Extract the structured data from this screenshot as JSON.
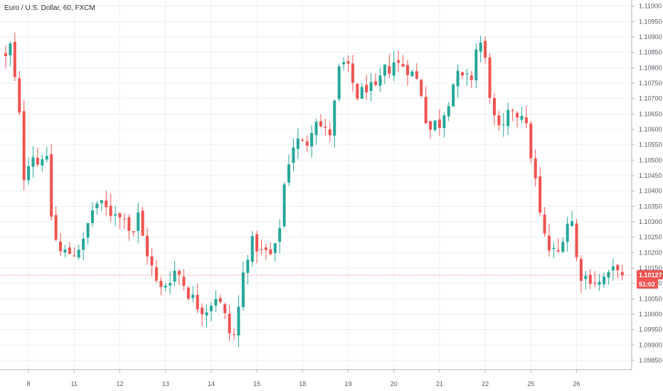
{
  "chart_data": {
    "type": "candlestick",
    "title": "Euro / U.S. Dollar, 60, FXCM",
    "price_axis": {
      "ylim": [
        1.0982,
        1.1102
      ],
      "ticks": [
        "1.11000",
        "1.10950",
        "1.10900",
        "1.10850",
        "1.10800",
        "1.10750",
        "1.10700",
        "1.10650",
        "1.10600",
        "1.10550",
        "1.10500",
        "1.10450",
        "1.10400",
        "1.10350",
        "1.10300",
        "1.10250",
        "1.10200",
        "1.10150",
        "1.10100",
        "1.10050",
        "1.10000",
        "1.09950",
        "1.09900",
        "1.09850"
      ]
    },
    "time_axis": {
      "ticks": [
        {
          "label": "8",
          "bar": 5
        },
        {
          "label": "11",
          "bar": 15
        },
        {
          "label": "12",
          "bar": 25
        },
        {
          "label": "13",
          "bar": 35
        },
        {
          "label": "14",
          "bar": 45
        },
        {
          "label": "15",
          "bar": 55
        },
        {
          "label": "18",
          "bar": 65
        },
        {
          "label": "19",
          "bar": 75
        },
        {
          "label": "20",
          "bar": 85
        },
        {
          "label": "21",
          "bar": 95
        },
        {
          "label": "22",
          "bar": 105
        },
        {
          "label": "25",
          "bar": 115
        },
        {
          "label": "26",
          "bar": 125
        }
      ]
    },
    "anchors": [
      [
        0,
        1.1083
      ],
      [
        1,
        1.1087
      ],
      [
        2,
        1.1076
      ],
      [
        3,
        1.1064
      ],
      [
        4,
        1.1045
      ],
      [
        5,
        1.105
      ],
      [
        6,
        1.1052
      ],
      [
        7,
        1.1049
      ],
      [
        8,
        1.1052
      ],
      [
        9,
        1.1049
      ],
      [
        10,
        1.1032
      ],
      [
        11,
        1.1024
      ],
      [
        12,
        1.102
      ],
      [
        13,
        1.102
      ],
      [
        14,
        1.102
      ],
      [
        15,
        1.102
      ],
      [
        16,
        1.1022
      ],
      [
        17,
        1.1023
      ],
      [
        18,
        1.1029
      ],
      [
        19,
        1.1034
      ],
      [
        20,
        1.1036
      ],
      [
        21,
        1.1035
      ],
      [
        22,
        1.1034
      ],
      [
        23,
        1.1033
      ],
      [
        24,
        1.1034
      ],
      [
        25,
        1.1031
      ],
      [
        26,
        1.1033
      ],
      [
        27,
        1.1028
      ],
      [
        28,
        1.1027
      ],
      [
        29,
        1.1032
      ],
      [
        30,
        1.1025
      ],
      [
        31,
        1.102
      ],
      [
        32,
        1.1015
      ],
      [
        33,
        1.101
      ],
      [
        34,
        1.1008
      ],
      [
        35,
        1.101
      ],
      [
        36,
        1.1012
      ],
      [
        37,
        1.1014
      ],
      [
        38,
        1.1013
      ],
      [
        39,
        1.101
      ],
      [
        40,
        1.1007
      ],
      [
        41,
        1.1005
      ],
      [
        42,
        1.1003
      ],
      [
        43,
        1.1002
      ],
      [
        44,
        1.1002
      ],
      [
        45,
        1.1004
      ],
      [
        46,
        1.1006
      ],
      [
        47,
        1.1003
      ],
      [
        48,
        1.0999
      ],
      [
        49,
        1.0994
      ],
      [
        50,
        1.0993
      ],
      [
        51,
        1.1002
      ],
      [
        52,
        1.1013
      ],
      [
        53,
        1.102
      ],
      [
        54,
        1.1023
      ],
      [
        55,
        1.1022
      ],
      [
        56,
        1.102
      ],
      [
        57,
        1.102
      ],
      [
        58,
        1.1019
      ],
      [
        59,
        1.1021
      ],
      [
        60,
        1.1029
      ],
      [
        61,
        1.1042
      ],
      [
        62,
        1.105
      ],
      [
        63,
        1.1055
      ],
      [
        64,
        1.1056
      ],
      [
        65,
        1.1055
      ],
      [
        66,
        1.1056
      ],
      [
        67,
        1.1061
      ],
      [
        68,
        1.1064
      ],
      [
        69,
        1.1061
      ],
      [
        70,
        1.1059
      ],
      [
        71,
        1.1059
      ],
      [
        72,
        1.1068
      ],
      [
        73,
        1.1079
      ],
      [
        74,
        1.1081
      ],
      [
        75,
        1.1079
      ],
      [
        76,
        1.1075
      ],
      [
        77,
        1.1071
      ],
      [
        78,
        1.1072
      ],
      [
        79,
        1.1074
      ],
      [
        80,
        1.1073
      ],
      [
        81,
        1.1072
      ],
      [
        82,
        1.1076
      ],
      [
        83,
        1.1079
      ],
      [
        84,
        1.108
      ],
      [
        85,
        1.1082
      ],
      [
        86,
        1.1081
      ],
      [
        87,
        1.1081
      ],
      [
        88,
        1.108
      ],
      [
        89,
        1.1078
      ],
      [
        90,
        1.1076
      ],
      [
        91,
        1.1072
      ],
      [
        92,
        1.1064
      ],
      [
        93,
        1.106
      ],
      [
        94,
        1.1062
      ],
      [
        95,
        1.1062
      ],
      [
        96,
        1.1066
      ],
      [
        97,
        1.107
      ],
      [
        98,
        1.1075
      ],
      [
        99,
        1.1077
      ],
      [
        100,
        1.1076
      ],
      [
        101,
        1.1076
      ],
      [
        102,
        1.1077
      ],
      [
        103,
        1.1086
      ],
      [
        104,
        1.1088
      ],
      [
        105,
        1.1082
      ],
      [
        106,
        1.1072
      ],
      [
        107,
        1.1063
      ],
      [
        108,
        1.1059
      ],
      [
        109,
        1.106
      ],
      [
        110,
        1.1064
      ],
      [
        111,
        1.1067
      ],
      [
        112,
        1.1065
      ],
      [
        113,
        1.1066
      ],
      [
        114,
        1.106
      ],
      [
        115,
        1.1052
      ],
      [
        116,
        1.1043
      ],
      [
        117,
        1.1032
      ],
      [
        118,
        1.1025
      ],
      [
        119,
        1.1021
      ],
      [
        120,
        1.102
      ],
      [
        121,
        1.102
      ],
      [
        122,
        1.1026
      ],
      [
        123,
        1.103
      ],
      [
        124,
        1.103
      ],
      [
        125,
        1.1018
      ],
      [
        126,
        1.1013
      ],
      [
        127,
        1.1012
      ],
      [
        128,
        1.1012
      ],
      [
        129,
        1.1011
      ],
      [
        130,
        1.101
      ],
      [
        131,
        1.1012
      ],
      [
        132,
        1.1012
      ],
      [
        133,
        1.1014
      ],
      [
        134,
        1.1016
      ],
      [
        135,
        1.1013
      ]
    ],
    "last_price": 1.10127,
    "last_price_label": "1.10127",
    "countdown_label": "51:02",
    "colors": {
      "up": "#26a69a",
      "down": "#ef5350",
      "grid": "#ecf0f3",
      "axis": "#b2b5be",
      "last_price_line": "#ef5350",
      "last_price_bg": "#ef5350"
    }
  }
}
